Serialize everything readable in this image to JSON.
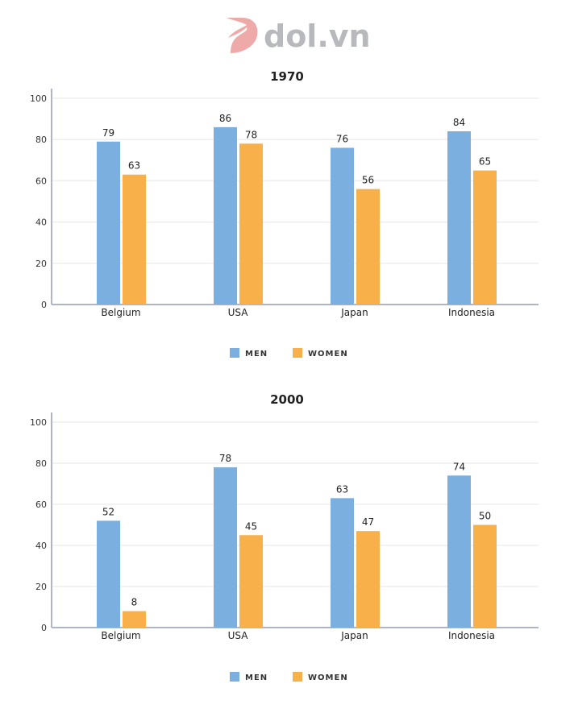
{
  "logo": {
    "text": "dol.vn",
    "mark_color": "#eeaaa9",
    "text_color": "#b8b9bc"
  },
  "colors": {
    "men": "#7aafe0",
    "women": "#f7b04a",
    "axis": "#b0b4c4",
    "grid": "#eeeeee"
  },
  "chart_data": [
    {
      "type": "bar",
      "title": "1970",
      "categories": [
        "Belgium",
        "USA",
        "Japan",
        "Indonesia"
      ],
      "series": [
        {
          "name": "MEN",
          "values": [
            79,
            86,
            76,
            84
          ]
        },
        {
          "name": "WOMEN",
          "values": [
            63,
            78,
            56,
            65
          ]
        }
      ],
      "ylim": [
        0,
        100
      ],
      "yticks": [
        0,
        20,
        40,
        60,
        80,
        100
      ],
      "grid": true,
      "legend": "bottom-center"
    },
    {
      "type": "bar",
      "title": "2000",
      "categories": [
        "Belgium",
        "USA",
        "Japan",
        "Indonesia"
      ],
      "series": [
        {
          "name": "MEN",
          "values": [
            52,
            78,
            63,
            74
          ]
        },
        {
          "name": "WOMEN",
          "values": [
            8,
            45,
            47,
            50
          ]
        }
      ],
      "ylim": [
        0,
        100
      ],
      "yticks": [
        0,
        20,
        40,
        60,
        80,
        100
      ],
      "grid": true,
      "legend": "bottom-center"
    }
  ]
}
